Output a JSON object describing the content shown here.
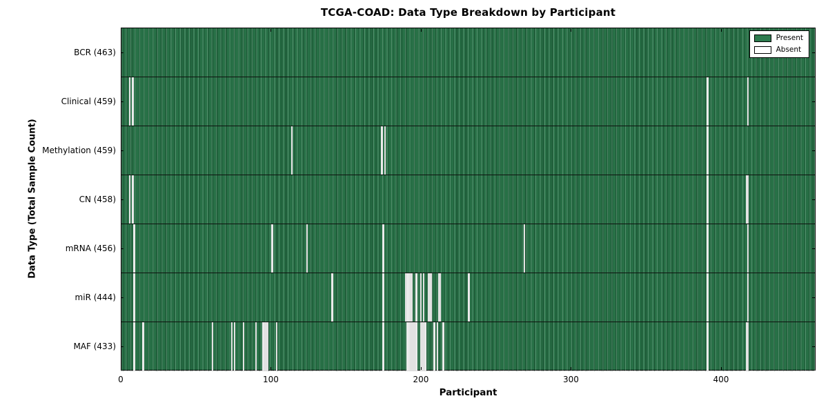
{
  "title": "TCGA-COAD: Data Type Breakdown by Participant",
  "xlabel": "Participant",
  "ylabel": "Data Type (Total Sample Count)",
  "legend": {
    "present_label": "Present",
    "absent_label": "Absent"
  },
  "colors": {
    "present": "#2d7b4e",
    "absent": "#f2f2f2",
    "axis": "#000000",
    "background": "#ffffff"
  },
  "chart_data": {
    "type": "heatmap",
    "title": "TCGA-COAD: Data Type Breakdown by Participant",
    "xlabel": "Participant",
    "ylabel": "Data Type (Total Sample Count)",
    "legend_entries": [
      "Present",
      "Absent"
    ],
    "legend_position": "upper right",
    "grid": false,
    "n_participants": 463,
    "xlim": [
      0,
      463
    ],
    "x_ticks": [
      0,
      100,
      200,
      300,
      400
    ],
    "x_tick_labels": [
      "0",
      "100",
      "200",
      "300",
      "400"
    ],
    "rows": [
      {
        "name": "bcr",
        "label": "BCR (463)",
        "data_type": "BCR",
        "present_count": 463,
        "absent_participants": []
      },
      {
        "name": "clinical",
        "label": "Clinical (459)",
        "data_type": "Clinical",
        "present_count": 459,
        "absent_participants": [
          5,
          7,
          390,
          417
        ]
      },
      {
        "name": "methylation",
        "label": "Methylation (459)",
        "data_type": "Methylation",
        "present_count": 459,
        "absent_participants": [
          113,
          173,
          175,
          390
        ]
      },
      {
        "name": "cn",
        "label": "CN (458)",
        "data_type": "CN",
        "present_count": 458,
        "absent_participants": [
          5,
          7,
          390,
          416,
          417
        ]
      },
      {
        "name": "mrna",
        "label": "mRNA (456)",
        "data_type": "mRNA",
        "present_count": 456,
        "absent_participants": [
          8,
          100,
          123,
          174,
          268,
          390,
          417
        ]
      },
      {
        "name": "mir",
        "label": "miR (444)",
        "data_type": "miR",
        "present_count": 444,
        "absent_participants": [
          8,
          140,
          174,
          189,
          190,
          191,
          192,
          193,
          196,
          199,
          201,
          204,
          205,
          206,
          211,
          212,
          231,
          390,
          417
        ]
      },
      {
        "name": "maf",
        "label": "MAF (433)",
        "data_type": "MAF",
        "present_count": 433,
        "absent_participants": [
          8,
          14,
          60,
          73,
          75,
          81,
          89,
          94,
          95,
          96,
          97,
          103,
          174,
          190,
          191,
          192,
          193,
          194,
          195,
          196,
          199,
          200,
          201,
          202,
          208,
          210,
          214,
          390,
          416,
          417
        ]
      }
    ]
  }
}
